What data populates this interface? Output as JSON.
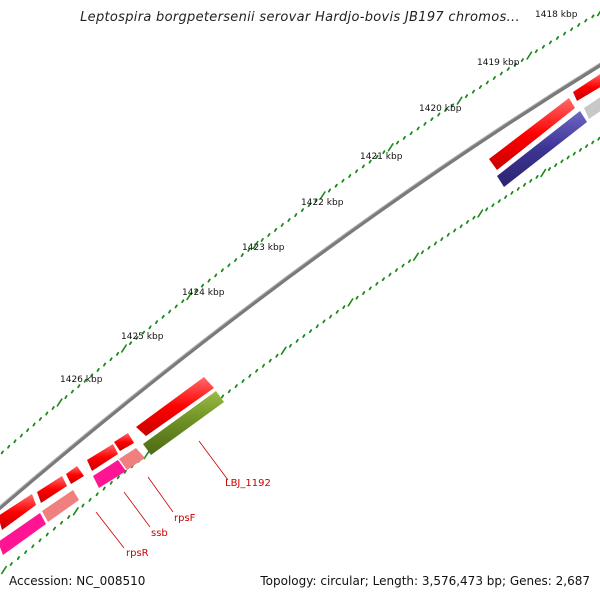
{
  "title": "Leptospira borgpetersenii serovar Hardjo-bovis JB197 chromos...",
  "footer": {
    "accession": "Accession: NC_008510",
    "summary": "Topology: circular; Length: 3,576,473 bp; Genes: 2,687"
  },
  "ticks": [
    "1418 kbp",
    "1419 kbp",
    "1420 kbp",
    "1421 kbp",
    "1422 kbp",
    "1423 kbp",
    "1424 kbp",
    "1425 kbp",
    "1426 kbp"
  ],
  "gene_labels": [
    "LBJ_1192",
    "rpsF",
    "ssb",
    "rpsR"
  ],
  "colors": {
    "backbone": "#808080",
    "cds_forward": "#ff0000",
    "cds_reverse_dark": "#3c3494",
    "cds_green": "#6b8e23",
    "cds_pink": "#ff1493",
    "cds_salmon": "#f08080",
    "cds_grey": "#c0c0c0",
    "tick_green": "#1a8a1a",
    "label_red": "#cc0000"
  }
}
